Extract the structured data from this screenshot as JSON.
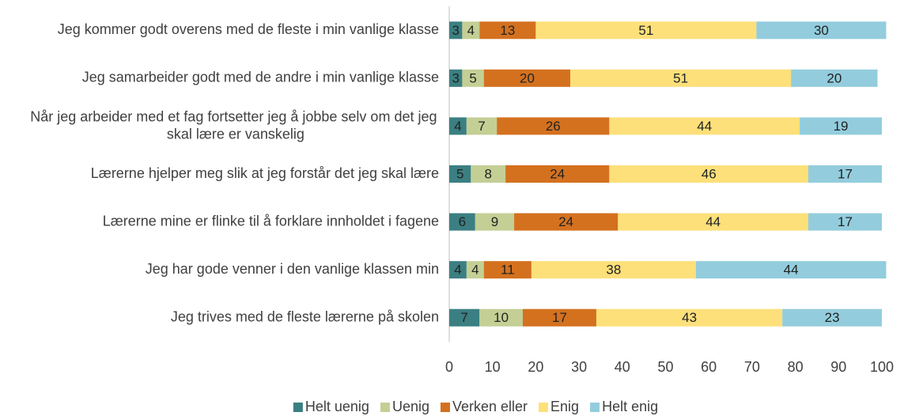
{
  "chart_data": {
    "type": "stacked-bar-horizontal",
    "categories": [
      "Jeg kommer godt overens med de fleste i min vanlige klasse",
      "Jeg samarbeider godt med de andre i min vanlige klasse",
      "Når jeg arbeider med et fag fortsetter jeg å jobbe selv om det jeg skal lære er vanskelig",
      "Lærerne hjelper meg slik at jeg forstår det jeg skal lære",
      "Lærerne mine er flinke til å forklare innholdet i fagene",
      "Jeg har gode venner i den vanlige klassen min",
      "Jeg trives med de fleste lærerne på skolen"
    ],
    "series": [
      {
        "name": "Helt uenig",
        "color": "#3b7f82",
        "values": [
          3,
          3,
          4,
          5,
          6,
          4,
          7
        ]
      },
      {
        "name": "Uenig",
        "color": "#c4cf95",
        "values": [
          4,
          5,
          7,
          8,
          9,
          4,
          10
        ]
      },
      {
        "name": "Verken eller",
        "color": "#d4711f",
        "values": [
          13,
          20,
          26,
          24,
          24,
          11,
          17
        ]
      },
      {
        "name": "Enig",
        "color": "#fde07a",
        "values": [
          51,
          51,
          44,
          46,
          44,
          38,
          43
        ]
      },
      {
        "name": "Helt enig",
        "color": "#93cddd",
        "values": [
          30,
          20,
          19,
          17,
          17,
          44,
          23
        ]
      }
    ],
    "xlim": [
      0,
      100
    ],
    "xticks": [
      0,
      10,
      20,
      30,
      40,
      50,
      60,
      70,
      80,
      90,
      100
    ],
    "grid": false,
    "legend": "bottom"
  }
}
